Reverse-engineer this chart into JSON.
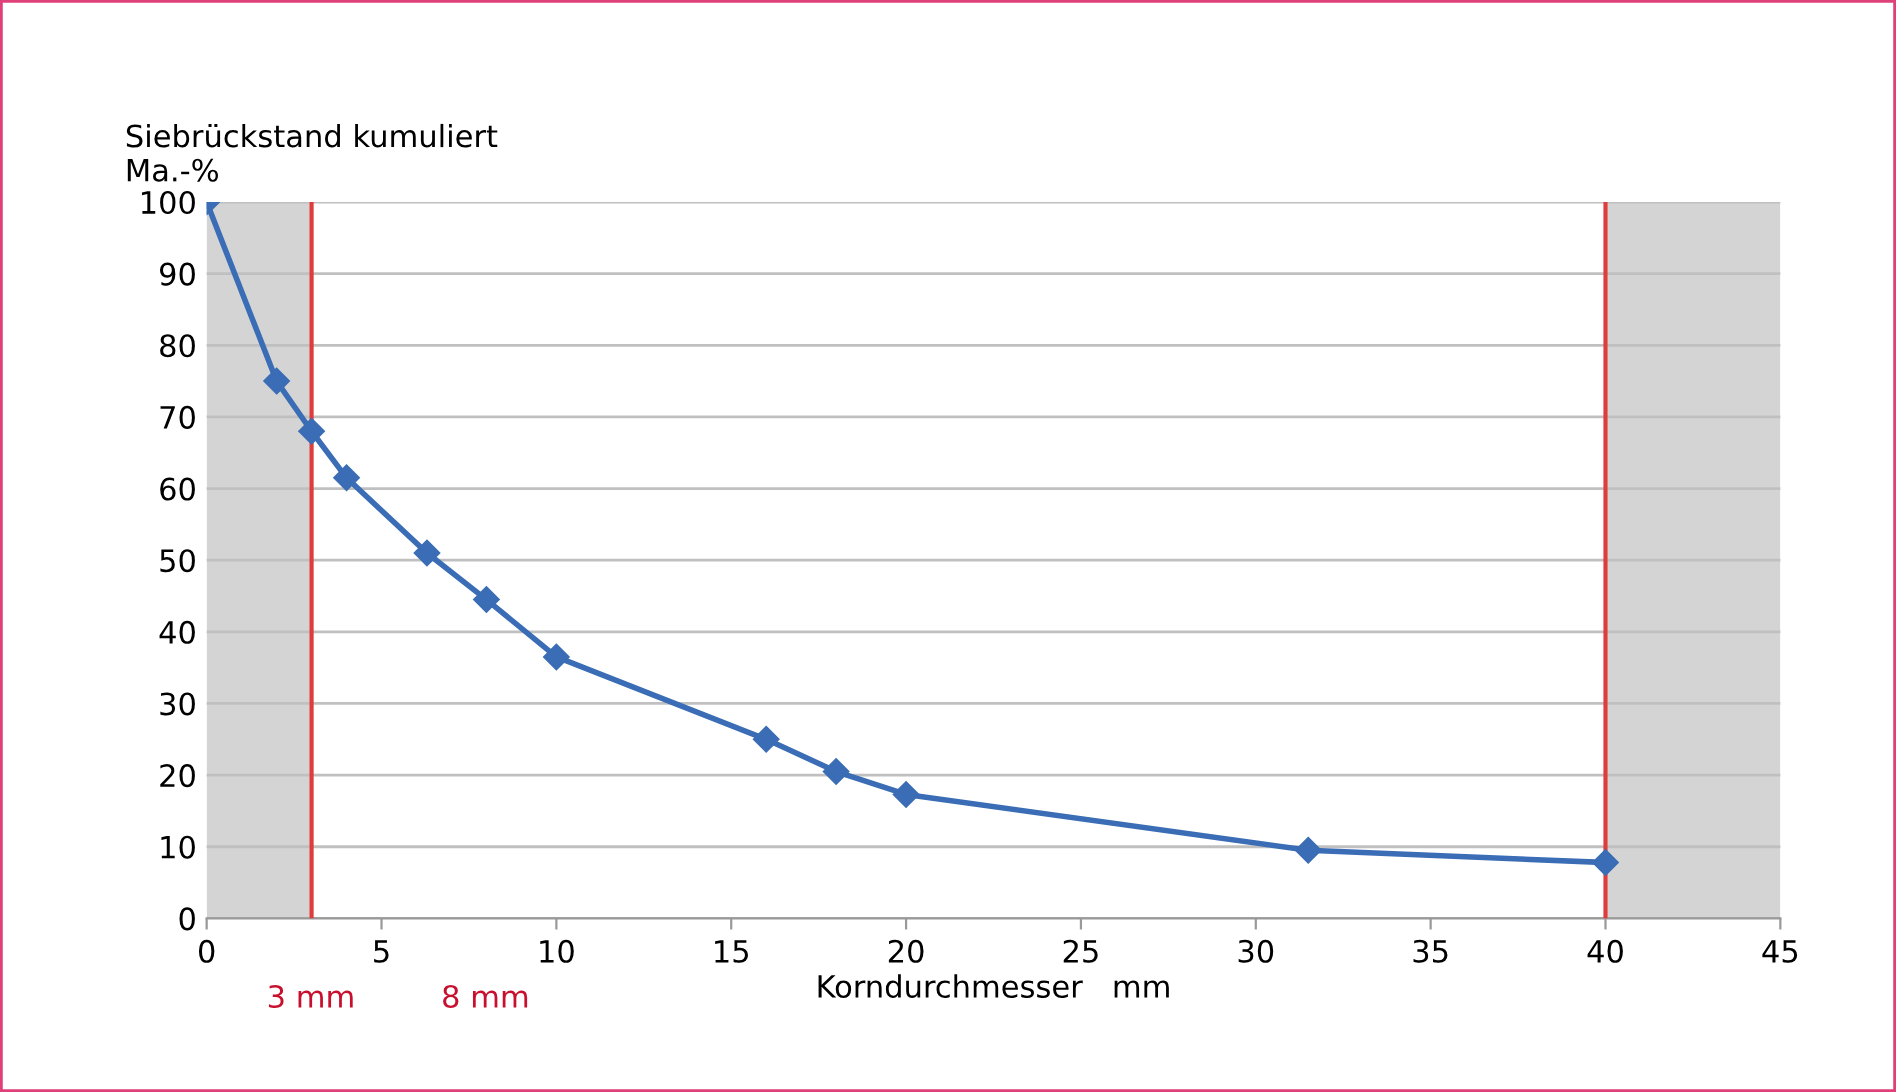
{
  "chart_data": {
    "type": "line",
    "ylabel": "Siebrückstand kumuliert\nMa.-%",
    "xlabel": "Korndurchmesser   mm",
    "series": [
      {
        "color": "#3a6db5",
        "x": [
          0,
          2,
          3,
          4,
          6.3,
          8,
          10,
          16,
          18,
          20,
          31.5,
          40
        ],
        "values": [
          100,
          75,
          68,
          61.5,
          51,
          44.5,
          36.5,
          25,
          20.5,
          17.3,
          9.5,
          7.8
        ]
      }
    ],
    "xlim": [
      0,
      45
    ],
    "xticks": [
      0,
      5,
      10,
      15,
      20,
      25,
      30,
      35,
      40,
      45
    ],
    "ylim": [
      0,
      100
    ],
    "yticks": [
      0,
      10,
      20,
      30,
      40,
      50,
      60,
      70,
      80,
      90,
      100
    ],
    "grid": "y",
    "marker": "diamond",
    "line_style": "solid",
    "bands": [
      {
        "axis": "x",
        "from": 0,
        "to": 3,
        "color": "#d4d4d4"
      },
      {
        "axis": "x",
        "from": 40,
        "to": 45,
        "color": "#d4d4d4"
      }
    ],
    "ref_lines": [
      {
        "axis": "x",
        "value": 3,
        "color": "#e03c3c"
      },
      {
        "axis": "x",
        "value": 40,
        "color": "#e03c3c"
      }
    ],
    "annotations": [
      "3 mm",
      "8 mm"
    ]
  }
}
